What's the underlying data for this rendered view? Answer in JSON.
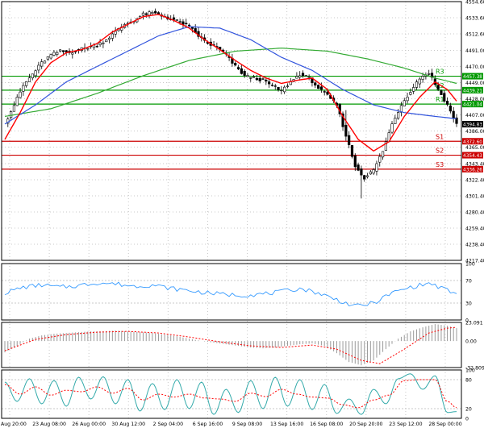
{
  "colors": {
    "background": "#ffffff",
    "frame": "#000000",
    "grid": "#c8c8c8",
    "candle": "#000000",
    "candle_bull_fill": "#ffffff",
    "ma_fast": "#ff0000",
    "ma_medium": "#3355dd",
    "ma_slow": "#33aa33",
    "resistance": "#009900",
    "support": "#cc0000",
    "rsi": "#3399ff",
    "macd_hist": "#999999",
    "macd_signal": "#ff0000",
    "stoch_main": "#33aaaa",
    "stoch_signal": "#ff0000",
    "current_price_tag": "#000000"
  },
  "chart_data": [
    {
      "type": "candlestick",
      "panel": "price",
      "current_price": "4394.83",
      "y_ticks": [
        "4554.60",
        "4533.60",
        "4512.60",
        "4491.00",
        "4470.00",
        "4449.00",
        "4428.00",
        "4407.00",
        "4386.00",
        "4365.00",
        "4343.40",
        "4322.40",
        "4301.40",
        "4280.40",
        "4259.40",
        "4238.40",
        "4217.40"
      ],
      "ylim": [
        4217.4,
        4554.6
      ],
      "x_ticks": [
        "20 Aug 20:00",
        "23 Aug 08:00",
        "26 Aug 00:00",
        "30 Aug 12:00",
        "2 Sep 04:00",
        "6 Sep 16:00",
        "9 Sep 08:00",
        "13 Sep 16:00",
        "16 Sep 08:00",
        "20 Sep 20:00",
        "23 Sep 12:00",
        "28 Sep 00:00"
      ],
      "levels": [
        {
          "label": "R3",
          "price": 4457.38,
          "tag": "4457.38",
          "kind": "resistance"
        },
        {
          "label": "R2",
          "price": 4439.21,
          "tag": "4439.21",
          "kind": "resistance"
        },
        {
          "label": "R1",
          "price": 4421.04,
          "tag": "4421.04",
          "kind": "resistance"
        },
        {
          "label": "S1",
          "price": 4372.6,
          "tag": "4372.60",
          "kind": "support"
        },
        {
          "label": "S2",
          "price": 4354.43,
          "tag": "4354.43",
          "kind": "support"
        },
        {
          "label": "S3",
          "price": 4336.26,
          "tag": "4336.26",
          "kind": "support"
        }
      ],
      "close_path": [
        [
          0,
          4395
        ],
        [
          3,
          4420
        ],
        [
          6,
          4445
        ],
        [
          9,
          4460
        ],
        [
          12,
          4475
        ],
        [
          15,
          4485
        ],
        [
          18,
          4490
        ],
        [
          21,
          4488
        ],
        [
          24,
          4492
        ],
        [
          27,
          4495
        ],
        [
          30,
          4498
        ],
        [
          33,
          4505
        ],
        [
          36,
          4515
        ],
        [
          39,
          4525
        ],
        [
          42,
          4530
        ],
        [
          45,
          4538
        ],
        [
          48,
          4540
        ],
        [
          51,
          4536
        ],
        [
          54,
          4532
        ],
        [
          57,
          4528
        ],
        [
          60,
          4522
        ],
        [
          63,
          4510
        ],
        [
          66,
          4500
        ],
        [
          69,
          4495
        ],
        [
          72,
          4485
        ],
        [
          75,
          4470
        ],
        [
          78,
          4458
        ],
        [
          81,
          4455
        ],
        [
          84,
          4452
        ],
        [
          87,
          4445
        ],
        [
          90,
          4438
        ],
        [
          93,
          4450
        ],
        [
          96,
          4460
        ],
        [
          99,
          4455
        ],
        [
          102,
          4442
        ],
        [
          105,
          4432
        ],
        [
          108,
          4420
        ],
        [
          111,
          4380
        ],
        [
          114,
          4340
        ],
        [
          117,
          4325
        ],
        [
          120,
          4335
        ],
        [
          123,
          4360
        ],
        [
          126,
          4395
        ],
        [
          129,
          4420
        ],
        [
          132,
          4438
        ],
        [
          135,
          4455
        ],
        [
          138,
          4462
        ],
        [
          141,
          4440
        ],
        [
          144,
          4420
        ],
        [
          147,
          4394.83
        ]
      ],
      "ma_fast": [
        [
          0,
          4375
        ],
        [
          5,
          4410
        ],
        [
          10,
          4450
        ],
        [
          15,
          4475
        ],
        [
          20,
          4488
        ],
        [
          25,
          4492
        ],
        [
          30,
          4500
        ],
        [
          35,
          4515
        ],
        [
          40,
          4525
        ],
        [
          45,
          4535
        ],
        [
          50,
          4538
        ],
        [
          55,
          4530
        ],
        [
          60,
          4520
        ],
        [
          65,
          4505
        ],
        [
          70,
          4492
        ],
        [
          75,
          4478
        ],
        [
          80,
          4465
        ],
        [
          85,
          4455
        ],
        [
          90,
          4448
        ],
        [
          95,
          4452
        ],
        [
          100,
          4455
        ],
        [
          105,
          4440
        ],
        [
          110,
          4405
        ],
        [
          115,
          4375
        ],
        [
          120,
          4360
        ],
        [
          125,
          4372
        ],
        [
          130,
          4405
        ],
        [
          135,
          4430
        ],
        [
          140,
          4450
        ],
        [
          144,
          4440
        ],
        [
          147,
          4425
        ]
      ],
      "ma_medium": [
        [
          0,
          4395
        ],
        [
          10,
          4420
        ],
        [
          20,
          4450
        ],
        [
          30,
          4470
        ],
        [
          40,
          4490
        ],
        [
          50,
          4510
        ],
        [
          60,
          4522
        ],
        [
          70,
          4520
        ],
        [
          80,
          4505
        ],
        [
          90,
          4482
        ],
        [
          100,
          4465
        ],
        [
          110,
          4440
        ],
        [
          120,
          4420
        ],
        [
          130,
          4410
        ],
        [
          140,
          4405
        ],
        [
          147,
          4402
        ]
      ],
      "ma_slow": [
        [
          0,
          4405
        ],
        [
          15,
          4415
        ],
        [
          30,
          4435
        ],
        [
          45,
          4458
        ],
        [
          60,
          4478
        ],
        [
          75,
          4490
        ],
        [
          90,
          4494
        ],
        [
          105,
          4490
        ],
        [
          118,
          4480
        ],
        [
          130,
          4468
        ],
        [
          140,
          4455
        ],
        [
          147,
          4448
        ]
      ]
    },
    {
      "type": "line",
      "panel": "rsi",
      "y_ticks": [
        "100",
        "70",
        "30",
        "0"
      ],
      "ylim": [
        0,
        100
      ],
      "values": [
        [
          0,
          48
        ],
        [
          6,
          58
        ],
        [
          12,
          62
        ],
        [
          18,
          58
        ],
        [
          24,
          61
        ],
        [
          30,
          66
        ],
        [
          36,
          64
        ],
        [
          42,
          60
        ],
        [
          48,
          62
        ],
        [
          54,
          56
        ],
        [
          60,
          52
        ],
        [
          66,
          48
        ],
        [
          72,
          45
        ],
        [
          78,
          44
        ],
        [
          84,
          46
        ],
        [
          90,
          50
        ],
        [
          96,
          56
        ],
        [
          102,
          48
        ],
        [
          108,
          36
        ],
        [
          114,
          24
        ],
        [
          120,
          30
        ],
        [
          126,
          48
        ],
        [
          132,
          58
        ],
        [
          138,
          65
        ],
        [
          143,
          55
        ],
        [
          147,
          45
        ]
      ]
    },
    {
      "type": "bar",
      "panel": "macd",
      "y_ticks": [
        "23.091",
        "0.00",
        "-32.809"
      ],
      "ylim": [
        -32.809,
        23.091
      ],
      "histogram": [
        [
          0,
          -14
        ],
        [
          4,
          -6
        ],
        [
          8,
          3
        ],
        [
          12,
          7
        ],
        [
          16,
          9
        ],
        [
          20,
          10
        ],
        [
          24,
          11
        ],
        [
          28,
          12
        ],
        [
          32,
          12
        ],
        [
          36,
          13
        ],
        [
          40,
          12
        ],
        [
          44,
          11
        ],
        [
          48,
          10
        ],
        [
          52,
          8
        ],
        [
          56,
          6
        ],
        [
          60,
          3
        ],
        [
          64,
          0
        ],
        [
          68,
          -2
        ],
        [
          72,
          -4
        ],
        [
          76,
          -6
        ],
        [
          80,
          -8
        ],
        [
          84,
          -9
        ],
        [
          88,
          -8
        ],
        [
          92,
          -6
        ],
        [
          96,
          -4
        ],
        [
          100,
          -3
        ],
        [
          104,
          -6
        ],
        [
          108,
          -15
        ],
        [
          112,
          -26
        ],
        [
          116,
          -30
        ],
        [
          120,
          -24
        ],
        [
          124,
          -10
        ],
        [
          128,
          3
        ],
        [
          132,
          12
        ],
        [
          136,
          17
        ],
        [
          140,
          21
        ],
        [
          144,
          19
        ],
        [
          147,
          16
        ]
      ],
      "signal": [
        [
          0,
          -12
        ],
        [
          10,
          2
        ],
        [
          20,
          8
        ],
        [
          30,
          11
        ],
        [
          40,
          12
        ],
        [
          50,
          10
        ],
        [
          60,
          5
        ],
        [
          70,
          -1
        ],
        [
          80,
          -6
        ],
        [
          90,
          -8
        ],
        [
          100,
          -5
        ],
        [
          108,
          -10
        ],
        [
          116,
          -24
        ],
        [
          122,
          -28
        ],
        [
          130,
          -10
        ],
        [
          138,
          10
        ],
        [
          144,
          16
        ],
        [
          147,
          17
        ]
      ]
    },
    {
      "type": "line",
      "panel": "stochastic",
      "y_ticks": [
        "100",
        "80",
        "20",
        "0"
      ],
      "ylim": [
        0,
        100
      ],
      "main": [
        [
          0,
          75
        ],
        [
          4,
          35
        ],
        [
          8,
          82
        ],
        [
          12,
          30
        ],
        [
          16,
          78
        ],
        [
          20,
          25
        ],
        [
          24,
          85
        ],
        [
          28,
          40
        ],
        [
          32,
          86
        ],
        [
          36,
          30
        ],
        [
          40,
          80
        ],
        [
          44,
          15
        ],
        [
          48,
          72
        ],
        [
          52,
          18
        ],
        [
          56,
          80
        ],
        [
          60,
          20
        ],
        [
          64,
          75
        ],
        [
          68,
          8
        ],
        [
          72,
          60
        ],
        [
          76,
          12
        ],
        [
          80,
          78
        ],
        [
          84,
          20
        ],
        [
          88,
          85
        ],
        [
          92,
          25
        ],
        [
          96,
          80
        ],
        [
          100,
          18
        ],
        [
          104,
          70
        ],
        [
          108,
          10
        ],
        [
          112,
          40
        ],
        [
          116,
          8
        ],
        [
          120,
          60
        ],
        [
          124,
          30
        ],
        [
          128,
          82
        ],
        [
          132,
          92
        ],
        [
          136,
          60
        ],
        [
          140,
          88
        ],
        [
          144,
          12
        ],
        [
          147,
          14
        ]
      ],
      "signal": [
        [
          0,
          70
        ],
        [
          5,
          50
        ],
        [
          10,
          65
        ],
        [
          15,
          48
        ],
        [
          20,
          58
        ],
        [
          25,
          55
        ],
        [
          30,
          65
        ],
        [
          35,
          52
        ],
        [
          40,
          62
        ],
        [
          45,
          38
        ],
        [
          50,
          50
        ],
        [
          55,
          44
        ],
        [
          60,
          50
        ],
        [
          65,
          42
        ],
        [
          70,
          40
        ],
        [
          75,
          35
        ],
        [
          80,
          52
        ],
        [
          85,
          45
        ],
        [
          90,
          60
        ],
        [
          95,
          50
        ],
        [
          100,
          44
        ],
        [
          105,
          42
        ],
        [
          110,
          28
        ],
        [
          115,
          22
        ],
        [
          120,
          38
        ],
        [
          125,
          48
        ],
        [
          130,
          78
        ],
        [
          135,
          80
        ],
        [
          140,
          80
        ],
        [
          144,
          35
        ],
        [
          147,
          22
        ]
      ]
    }
  ]
}
